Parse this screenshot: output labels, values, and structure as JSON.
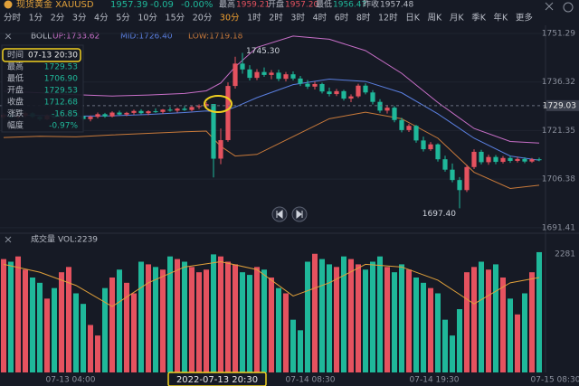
{
  "header": {
    "name": "现货黄金 XAUUSD",
    "price": "1957.39",
    "change": "-0.09",
    "change_pct": "-0.00%",
    "high_label": "最高",
    "high": "1959.21",
    "open_label": "开盘",
    "open": "1957.20",
    "low_label": "最低",
    "low": "1956.47",
    "prev_label": "昨收",
    "prev": "1957.48"
  },
  "toolbar": {
    "items": [
      "分时",
      "1分",
      "2分",
      "3分",
      "4分",
      "5分",
      "10分",
      "15分",
      "20分",
      "30分",
      "1时",
      "2时",
      "3时",
      "4时",
      "6时",
      "8时",
      "12时",
      "日K",
      "周K",
      "月K",
      "季K",
      "年K",
      "更多"
    ],
    "active": 9
  },
  "boll": {
    "name": "BOLL",
    "up": "UP:1733.62",
    "mid": "MID:1726.40",
    "low": "LOW:1719.18"
  },
  "info": {
    "rows": [
      [
        "时间",
        "07-13 20:30"
      ],
      [
        "最高",
        "1729.53"
      ],
      [
        "最低",
        "1706.90"
      ],
      [
        "开盘",
        "1729.53"
      ],
      [
        "收盘",
        "1712.68"
      ],
      [
        "涨跌",
        "-16.85"
      ],
      [
        "幅度",
        "-0.97%"
      ]
    ]
  },
  "kline": {
    "ylim": [
      1689.7,
      1753.8
    ],
    "yticks": [
      {
        "value": 1751.29,
        "label": "1751.29"
      },
      {
        "value": 1736.32,
        "label": "1736.32"
      },
      {
        "value": 1721.35,
        "label": "1721.35"
      },
      {
        "value": 1706.38,
        "label": "1706.38"
      },
      {
        "value": 1691.41,
        "label": "1691.41"
      }
    ],
    "up_color": "#e5525f",
    "down_color": "#1fb89a",
    "current": 1729.03,
    "current_label": "1729.03",
    "peak_label": "1745.30",
    "trough_label": "1697.40",
    "candles": [
      [
        1725.5,
        1726.8,
        1724.9,
        1726.2
      ],
      [
        1726.2,
        1726.9,
        1725.1,
        1725.4
      ],
      [
        1725.4,
        1726.3,
        1724.6,
        1725.9
      ],
      [
        1725.9,
        1727.2,
        1725.3,
        1726.7
      ],
      [
        1726.7,
        1727.0,
        1725.2,
        1725.6
      ],
      [
        1725.6,
        1726.1,
        1724.3,
        1724.8
      ],
      [
        1724.8,
        1726.4,
        1724.5,
        1726.0
      ],
      [
        1726.0,
        1726.6,
        1725.0,
        1725.3
      ],
      [
        1725.3,
        1726.5,
        1724.9,
        1726.2
      ],
      [
        1726.2,
        1727.1,
        1725.7,
        1726.8
      ],
      [
        1726.8,
        1727.0,
        1725.4,
        1725.8
      ],
      [
        1725.8,
        1726.2,
        1724.4,
        1724.9
      ],
      [
        1724.9,
        1726.0,
        1724.2,
        1725.6
      ],
      [
        1725.6,
        1726.9,
        1725.1,
        1726.4
      ],
      [
        1726.4,
        1726.8,
        1725.3,
        1725.7
      ],
      [
        1725.7,
        1727.3,
        1725.4,
        1726.9
      ],
      [
        1726.9,
        1727.5,
        1726.0,
        1726.3
      ],
      [
        1726.3,
        1727.1,
        1725.8,
        1726.8
      ],
      [
        1726.8,
        1727.8,
        1726.2,
        1727.4
      ],
      [
        1727.4,
        1727.9,
        1726.4,
        1726.7
      ],
      [
        1726.7,
        1727.6,
        1726.1,
        1727.3
      ],
      [
        1727.3,
        1728.2,
        1726.8,
        1727.1
      ],
      [
        1727.1,
        1728.0,
        1726.5,
        1727.8
      ],
      [
        1727.8,
        1728.6,
        1727.2,
        1727.5
      ],
      [
        1727.5,
        1728.4,
        1726.9,
        1728.1
      ],
      [
        1728.1,
        1728.9,
        1727.4,
        1727.7
      ],
      [
        1727.7,
        1729.0,
        1727.3,
        1728.6
      ],
      [
        1728.6,
        1729.4,
        1728.0,
        1728.9
      ],
      [
        1728.9,
        1730.1,
        1728.4,
        1729.5
      ],
      [
        1729.53,
        1729.53,
        1706.9,
        1712.68
      ],
      [
        1712.7,
        1722.0,
        1711.0,
        1718.4
      ],
      [
        1718.4,
        1736.2,
        1717.9,
        1735.1
      ],
      [
        1735.1,
        1744.1,
        1734.3,
        1742.0
      ],
      [
        1742.0,
        1745.3,
        1738.9,
        1740.2
      ],
      [
        1740.2,
        1741.5,
        1736.8,
        1737.6
      ],
      [
        1737.6,
        1740.3,
        1736.9,
        1739.4
      ],
      [
        1739.4,
        1740.8,
        1737.9,
        1738.5
      ],
      [
        1738.5,
        1740.0,
        1737.2,
        1739.2
      ],
      [
        1739.2,
        1740.1,
        1736.6,
        1737.3
      ],
      [
        1737.3,
        1739.4,
        1736.5,
        1738.7
      ],
      [
        1738.7,
        1739.6,
        1736.8,
        1737.4
      ],
      [
        1737.4,
        1738.2,
        1735.1,
        1735.8
      ],
      [
        1735.8,
        1736.9,
        1734.2,
        1734.9
      ],
      [
        1734.9,
        1736.4,
        1734.0,
        1735.7
      ],
      [
        1735.7,
        1736.1,
        1732.8,
        1733.4
      ],
      [
        1733.4,
        1734.6,
        1731.9,
        1732.6
      ],
      [
        1732.6,
        1734.2,
        1732.0,
        1733.5
      ],
      [
        1733.5,
        1733.9,
        1730.6,
        1731.2
      ],
      [
        1731.2,
        1732.5,
        1730.1,
        1731.9
      ],
      [
        1731.9,
        1735.8,
        1731.4,
        1735.2
      ],
      [
        1735.2,
        1735.9,
        1732.5,
        1733.1
      ],
      [
        1733.1,
        1733.8,
        1729.4,
        1730.2
      ],
      [
        1730.2,
        1731.0,
        1726.8,
        1727.5
      ],
      [
        1727.5,
        1729.2,
        1726.6,
        1728.4
      ],
      [
        1728.4,
        1728.9,
        1723.9,
        1724.6
      ],
      [
        1724.6,
        1725.3,
        1720.8,
        1721.5
      ],
      [
        1721.5,
        1723.4,
        1720.9,
        1722.8
      ],
      [
        1722.8,
        1723.1,
        1717.6,
        1718.3
      ],
      [
        1718.3,
        1719.5,
        1714.9,
        1715.6
      ],
      [
        1715.6,
        1717.8,
        1715.1,
        1717.1
      ],
      [
        1717.1,
        1717.4,
        1711.8,
        1712.5
      ],
      [
        1712.5,
        1713.6,
        1708.7,
        1709.3
      ],
      [
        1709.3,
        1711.2,
        1705.4,
        1706.1
      ],
      [
        1706.1,
        1707.0,
        1697.4,
        1703.0
      ],
      [
        1703.0,
        1710.8,
        1702.4,
        1710.1
      ],
      [
        1710.1,
        1715.6,
        1709.5,
        1714.8
      ],
      [
        1714.8,
        1715.4,
        1710.9,
        1711.6
      ],
      [
        1711.6,
        1713.9,
        1710.8,
        1713.2
      ],
      [
        1713.2,
        1713.8,
        1711.0,
        1711.7
      ],
      [
        1711.7,
        1713.5,
        1711.2,
        1712.9
      ],
      [
        1712.9,
        1713.6,
        1711.4,
        1712.0
      ],
      [
        1712.0,
        1713.2,
        1711.5,
        1712.6
      ],
      [
        1712.6,
        1713.1,
        1711.3,
        1711.8
      ],
      [
        1711.8,
        1712.9,
        1711.4,
        1712.5
      ],
      [
        1712.5,
        1713.0,
        1711.9,
        1712.3
      ]
    ],
    "band_x": [
      0,
      5,
      10,
      15,
      20,
      25,
      28,
      30,
      32,
      35,
      40,
      45,
      50,
      55,
      60,
      65,
      70,
      74
    ],
    "bands": [
      {
        "name": "up",
        "color": "#c86fc8",
        "values": [
          1733.5,
          1733.0,
          1732.4,
          1732.0,
          1732.3,
          1732.8,
          1733.6,
          1736,
          1741,
          1747,
          1750.5,
          1749.5,
          1746,
          1739,
          1730,
          1722,
          1718,
          1717.5
        ]
      },
      {
        "name": "mid",
        "color": "#5a7fe0",
        "values": [
          1726.2,
          1726.0,
          1725.8,
          1725.9,
          1726.3,
          1726.9,
          1727.4,
          1727.0,
          1728.6,
          1731.5,
          1735.5,
          1737.2,
          1736.5,
          1733.0,
          1726.5,
          1719.0,
          1713.5,
          1712.2
        ]
      },
      {
        "name": "low",
        "color": "#c97a3a",
        "values": [
          1719.2,
          1719.6,
          1719.4,
          1720.0,
          1720.5,
          1721.0,
          1721.2,
          1716.5,
          1713.5,
          1714.0,
          1719.5,
          1725.0,
          1727.0,
          1725.0,
          1719.0,
          1708.5,
          1703.5,
          1704.5
        ]
      }
    ]
  },
  "volume": {
    "name": "成交量",
    "vol_label": "VOL:2239",
    "max_label": "2281",
    "ylim": [
      0,
      2400
    ],
    "values": [
      2150,
      2100,
      2200,
      1950,
      1800,
      1700,
      1400,
      1600,
      1900,
      2000,
      1500,
      1300,
      900,
      700,
      1600,
      1800,
      1950,
      1700,
      1500,
      2100,
      2050,
      2000,
      1950,
      2200,
      2150,
      2100,
      2000,
      1900,
      1950,
      2239,
      2200,
      2100,
      2050,
      1900,
      1850,
      2000,
      1950,
      1800,
      1600,
      1500,
      1000,
      800,
      2100,
      2250,
      2150,
      2050,
      2000,
      2200,
      2150,
      2050,
      1950,
      2100,
      2200,
      2000,
      1900,
      2050,
      1950,
      1800,
      1700,
      1600,
      1500,
      1000,
      700,
      1200,
      1900,
      2000,
      2100,
      1950,
      2050,
      1800,
      1400,
      1100,
      1500,
      1900,
      2281
    ],
    "ma_x": [
      0,
      5,
      10,
      15,
      20,
      25,
      30,
      35,
      40,
      45,
      50,
      55,
      60,
      65,
      70,
      74
    ],
    "ma_color": "#e0a03a",
    "ma": [
      2050,
      1900,
      1650,
      1250,
      1700,
      2000,
      2100,
      1950,
      1450,
      1700,
      2050,
      2000,
      1750,
      1300,
      1700,
      1800
    ]
  },
  "time_axis": [
    "07-13 04:00",
    "2022-07-13 20:30",
    "07-14 08:30",
    "07-14 19:30",
    "07-15 08:30"
  ]
}
